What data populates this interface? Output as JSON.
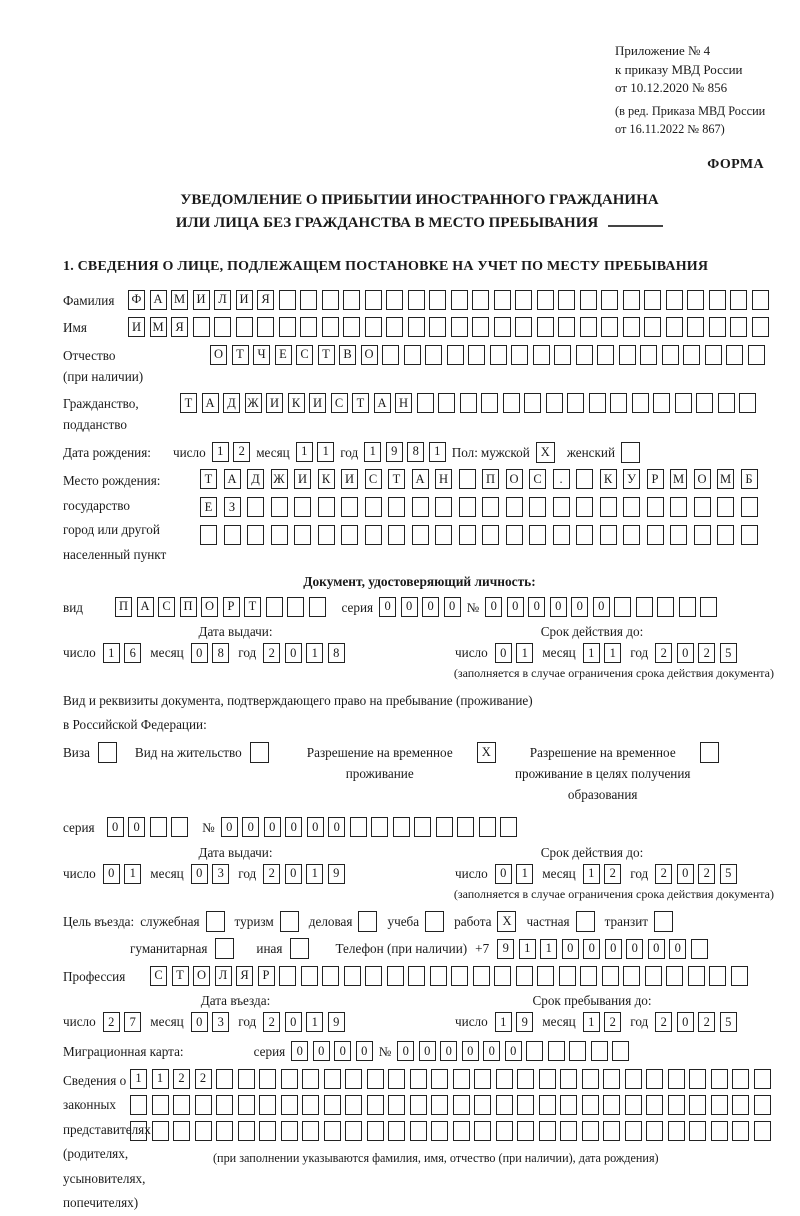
{
  "header": {
    "appendix_lines": [
      "Приложение № 4",
      "к приказу МВД России",
      "от 10.12.2020 № 856"
    ],
    "edition_lines": [
      "(в ред. Приказа МВД России",
      "от 16.11.2022 № 867)"
    ],
    "form_label": "ФОРМА"
  },
  "title": {
    "line1": "УВЕДОМЛЕНИЕ О ПРИБЫТИИ ИНОСТРАННОГО ГРАЖДАНИНА",
    "line2": "ИЛИ ЛИЦА БЕЗ ГРАЖДАНСТВА В МЕСТО ПРЕБЫВАНИЯ"
  },
  "section1_heading": "1. СВЕДЕНИЯ О ЛИЦЕ, ПОДЛЕЖАЩЕМ ПОСТАНОВКЕ НА УЧЕТ ПО МЕСТУ ПРЕБЫВАНИЯ",
  "person": {
    "surname": {
      "label": "Фамилия",
      "value": "ФАМИЛИЯ",
      "count": 30
    },
    "firstname": {
      "label": "Имя",
      "value": "ИМЯ",
      "count": 30
    },
    "patronymic": {
      "label_lines": [
        "Отчество",
        "(при наличии)"
      ],
      "value": "ОТЧЕСТВО",
      "count": 26
    },
    "citizenship": {
      "label_lines": [
        "Гражданство,",
        "подданство"
      ],
      "value": "ТАДЖИКИСТАН",
      "count": 27
    },
    "birth_date": {
      "label": "Дата рождения:",
      "day": {
        "label": "число",
        "value": "12",
        "count": 2
      },
      "month": {
        "label": "месяц",
        "value": "11",
        "count": 2
      },
      "year": {
        "label": "год",
        "value": "1981",
        "count": 4
      },
      "sex_label": "Пол:",
      "male": {
        "label": "мужской",
        "mark": "X"
      },
      "female": {
        "label": "женский",
        "mark": ""
      }
    },
    "birth_place": {
      "label_lines": [
        "Место рождения:",
        "государство",
        "город или другой",
        "населенный пункт"
      ],
      "rows": [
        {
          "value": "ТАДЖИКИСТАН ПОС. КУРМОМБ",
          "count": 24
        },
        {
          "value": "ЕЗ",
          "count": 24
        },
        {
          "value": "",
          "count": 24
        }
      ]
    }
  },
  "identity_doc": {
    "heading": "Документ, удостоверяющий личность:",
    "kind": {
      "label": "вид",
      "value": "ПАСПОРТ",
      "count": 10
    },
    "series": {
      "label": "серия",
      "value": "0000",
      "count": 4
    },
    "number": {
      "label": "№",
      "value": "000000",
      "count": 11
    },
    "issue": {
      "heading": "Дата выдачи:",
      "day": {
        "label": "число",
        "value": "16",
        "count": 2
      },
      "month": {
        "label": "месяц",
        "value": "08",
        "count": 2
      },
      "year": {
        "label": "год",
        "value": "2018",
        "count": 4
      }
    },
    "expiry": {
      "heading": "Срок действия до:",
      "day": {
        "label": "число",
        "value": "01",
        "count": 2
      },
      "month": {
        "label": "месяц",
        "value": "11",
        "count": 2
      },
      "year": {
        "label": "год",
        "value": "2025",
        "count": 4
      }
    },
    "note": "(заполняется в случае ограничения срока действия документа)"
  },
  "residence_doc": {
    "intro_lines": [
      "Вид и реквизиты документа, подтверждающего право на пребывание (проживание)",
      "в Российской Федерации:"
    ],
    "options": [
      {
        "label": "Виза",
        "mark": ""
      },
      {
        "label": "Вид на жительство",
        "mark": ""
      },
      {
        "label": "Разрешение на временное проживание",
        "mark": "X"
      },
      {
        "label": "Разрешение на временное проживание в целях получения образования",
        "mark": ""
      }
    ],
    "series": {
      "label": "серия",
      "value": "00",
      "count": 4
    },
    "number": {
      "label": "№",
      "value": "000000",
      "count": 14
    },
    "issue": {
      "heading": "Дата выдачи:",
      "day": {
        "label": "число",
        "value": "01",
        "count": 2
      },
      "month": {
        "label": "месяц",
        "value": "03",
        "count": 2
      },
      "year": {
        "label": "год",
        "value": "2019",
        "count": 4
      }
    },
    "expiry": {
      "heading": "Срок действия до:",
      "day": {
        "label": "число",
        "value": "01",
        "count": 2
      },
      "month": {
        "label": "месяц",
        "value": "12",
        "count": 2
      },
      "year": {
        "label": "год",
        "value": "2025",
        "count": 4
      }
    },
    "note": "(заполняется в случае ограничения срока действия документа)"
  },
  "visit": {
    "purpose_label": "Цель въезда:",
    "purposes": [
      {
        "label": "служебная",
        "mark": ""
      },
      {
        "label": "туризм",
        "mark": ""
      },
      {
        "label": "деловая",
        "mark": ""
      },
      {
        "label": "учеба",
        "mark": ""
      },
      {
        "label": "работа",
        "mark": "X"
      },
      {
        "label": "частная",
        "mark": ""
      },
      {
        "label": "транзит",
        "mark": ""
      }
    ],
    "purposes2": [
      {
        "label": "гуманитарная",
        "mark": ""
      },
      {
        "label": "иная",
        "mark": ""
      }
    ],
    "phone": {
      "label": "Телефон (при наличии)",
      "prefix": "+7",
      "value": "911000000",
      "count": 10
    },
    "profession": {
      "label": "Профессия",
      "value": "СТОЛЯР",
      "count": 28
    },
    "entry": {
      "heading": "Дата въезда:",
      "day": {
        "label": "число",
        "value": "27",
        "count": 2
      },
      "month": {
        "label": "месяц",
        "value": "03",
        "count": 2
      },
      "year": {
        "label": "год",
        "value": "2019",
        "count": 4
      }
    },
    "stay": {
      "heading": "Срок пребывания до:",
      "day": {
        "label": "число",
        "value": "19",
        "count": 2
      },
      "month": {
        "label": "месяц",
        "value": "12",
        "count": 2
      },
      "year": {
        "label": "год",
        "value": "2025",
        "count": 4
      }
    }
  },
  "migration_card": {
    "label": "Миграционная карта:",
    "series": {
      "label": "серия",
      "value": "0000",
      "count": 4
    },
    "number": {
      "label": "№",
      "value": "000000",
      "count": 11
    }
  },
  "representatives": {
    "label_lines": [
      "Сведения о",
      "законных",
      "представителях",
      "(родителях,",
      "усыновителях,",
      "попечителях)"
    ],
    "rows": [
      {
        "value": "1122",
        "count": 30
      },
      {
        "value": "",
        "count": 30
      },
      {
        "value": "",
        "count": 30
      }
    ],
    "note": "(при заполнении указываются фамилия, имя, отчество (при наличии), дата рождения)"
  }
}
